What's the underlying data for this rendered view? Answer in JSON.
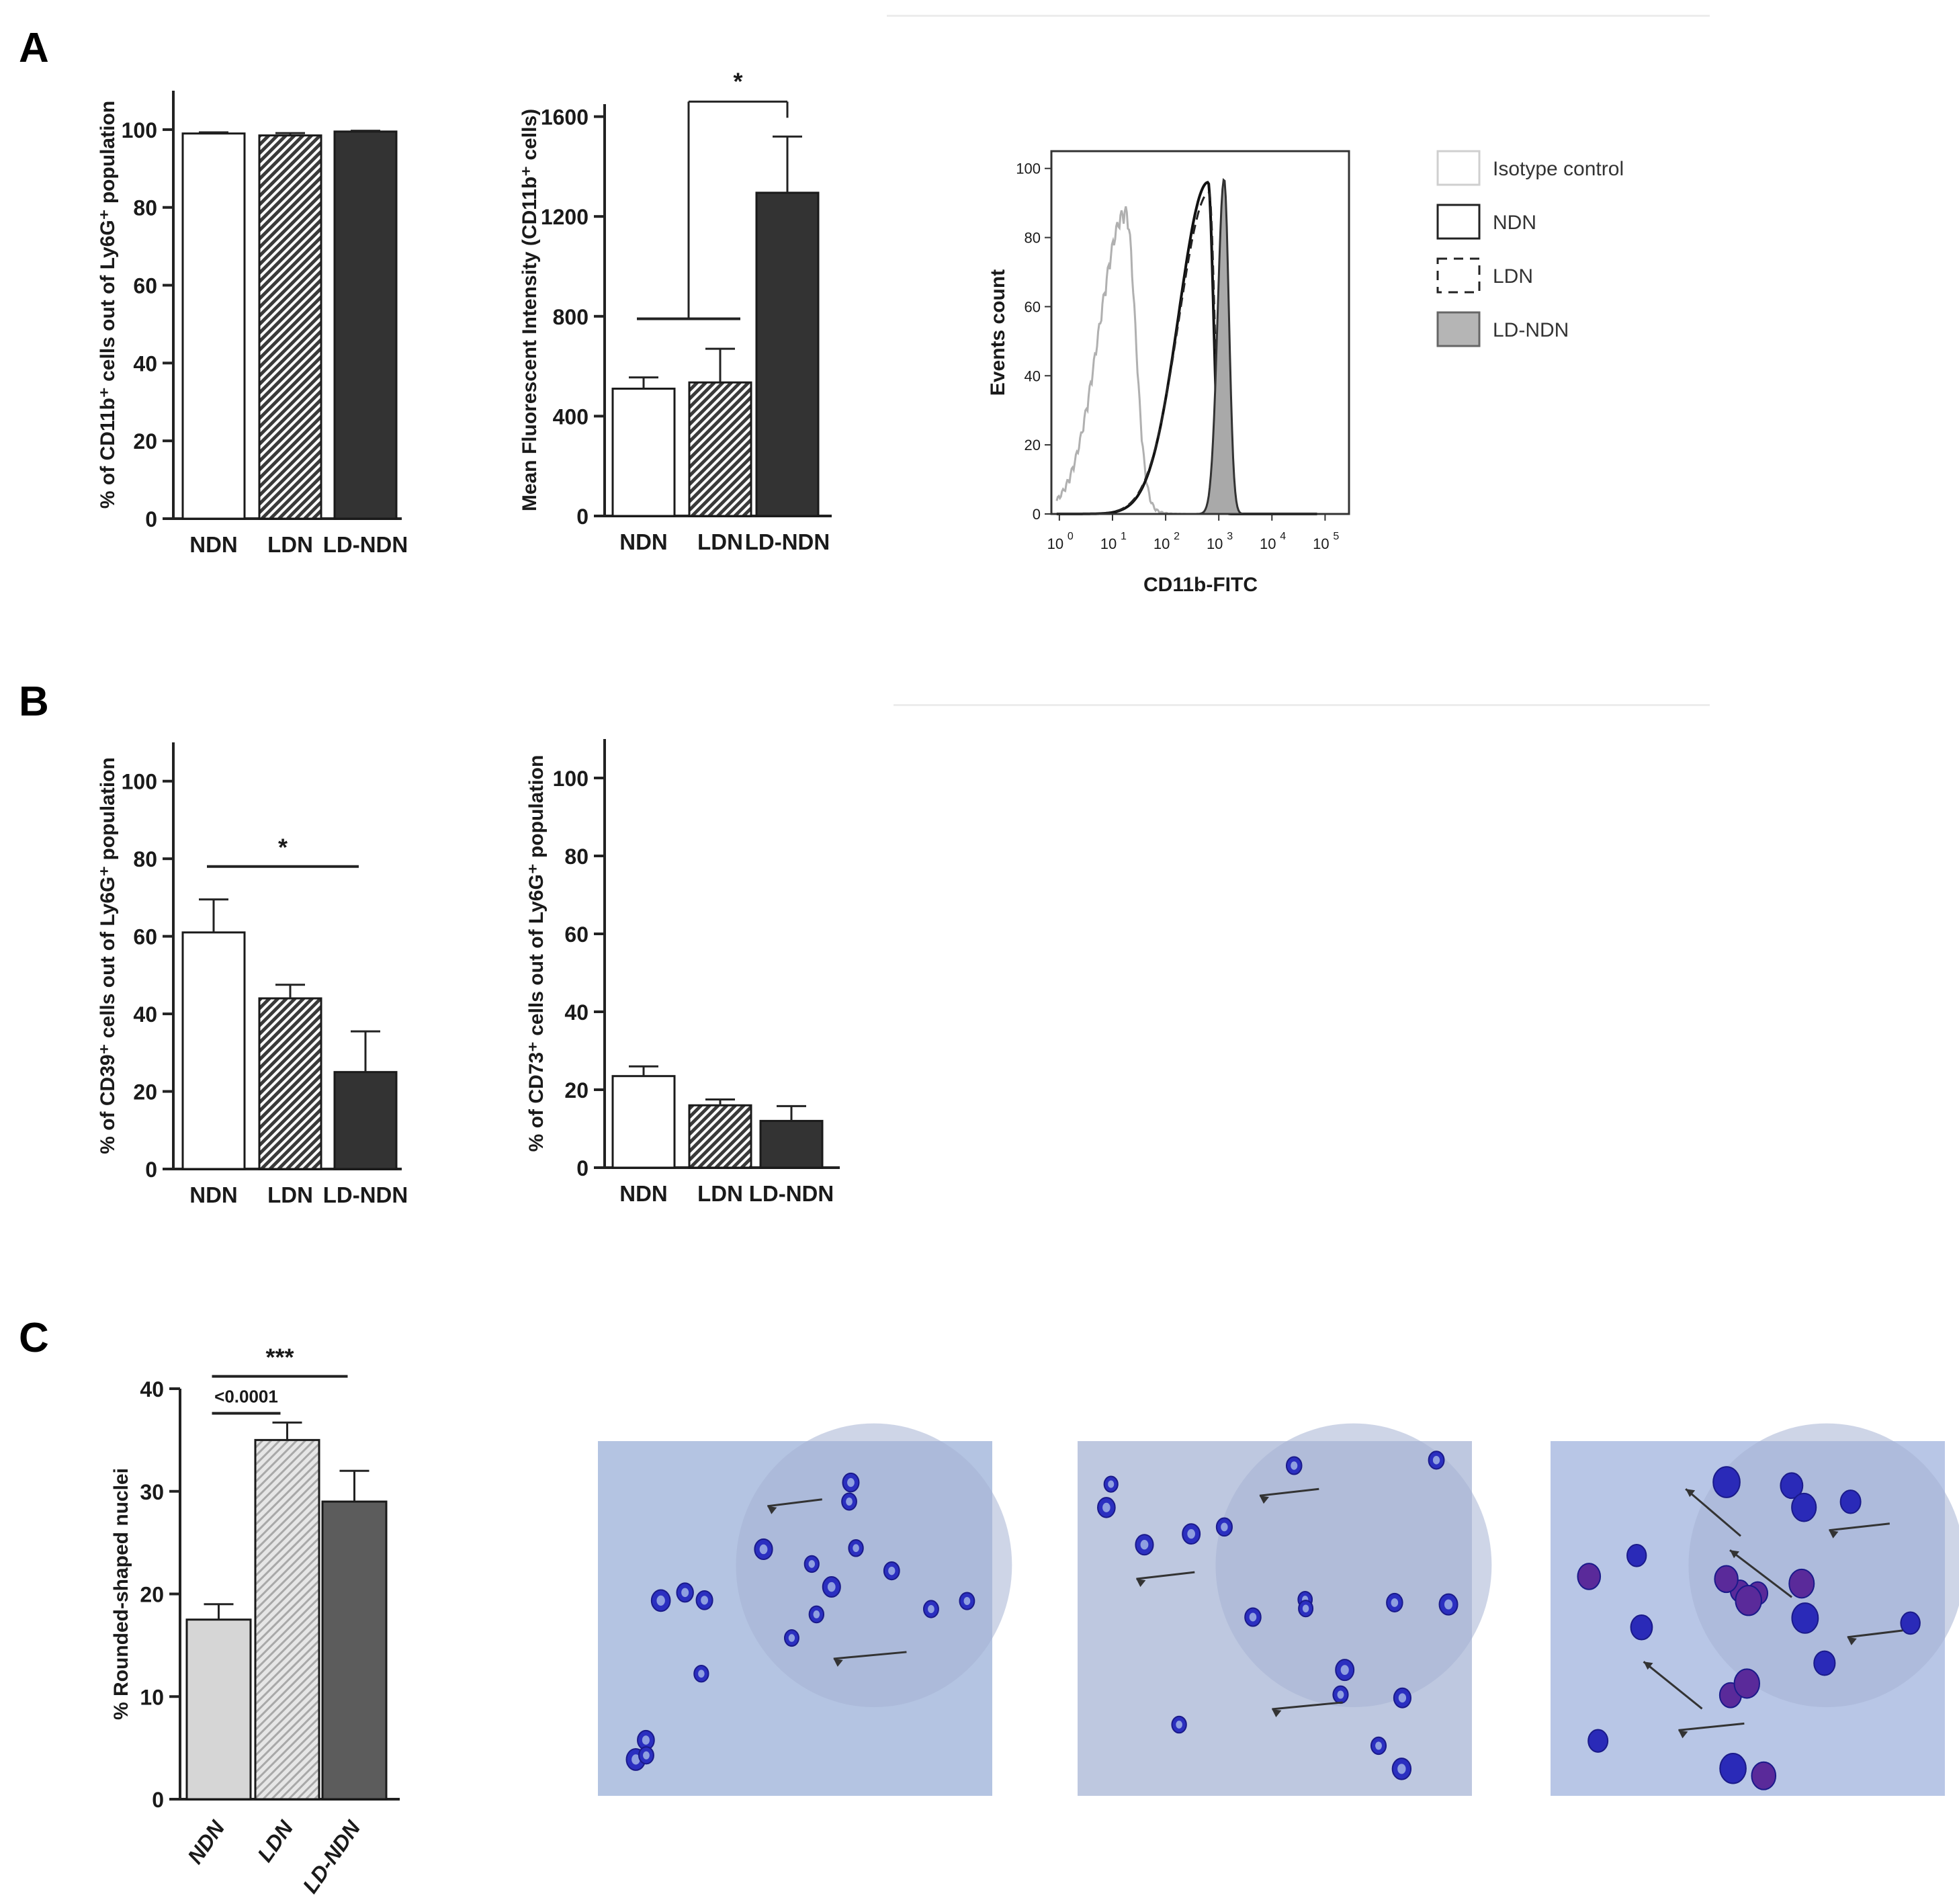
{
  "panels": {
    "a": "A",
    "b": "B",
    "c": "C"
  },
  "chart_data": [
    {
      "id": "A1",
      "type": "bar",
      "ylabel": "% of CD11b⁺ cells out of Ly6G⁺ population",
      "categories": [
        "NDN",
        "LDN",
        "LD-NDN"
      ],
      "values": [
        99,
        98.5,
        99.5
      ],
      "errors": [
        0.3,
        0.6,
        0.2
      ],
      "ylim": [
        0,
        110
      ],
      "yticks": [
        0,
        20,
        40,
        60,
        80,
        100
      ],
      "fills": [
        "white",
        "hatch",
        "#333333"
      ],
      "annotations": []
    },
    {
      "id": "A2",
      "type": "bar",
      "ylabel": "Mean Fluorescent Intensity (CD11b⁺ cells)",
      "categories": [
        "NDN",
        "LDN",
        "LD-NDN"
      ],
      "values": [
        510,
        535,
        1295
      ],
      "errors": [
        45,
        135,
        225
      ],
      "ylim": [
        0,
        1650
      ],
      "yticks": [
        0,
        400,
        800,
        1200,
        1600
      ],
      "fills": [
        "white",
        "hatch",
        "#333333"
      ],
      "annotations": [
        {
          "type": "bracket-group",
          "text": "*"
        }
      ]
    },
    {
      "id": "A3",
      "type": "histogram",
      "xlabel": "CD11b-FITC",
      "ylabel": "Events count",
      "xscale": "log",
      "xticks_exp": [
        0,
        1,
        2,
        3,
        4,
        5
      ],
      "xtick_base": "10",
      "ylim": [
        0,
        100
      ],
      "yticks": [
        0,
        20,
        40,
        60,
        80,
        100
      ],
      "legend_position": "right",
      "series": [
        {
          "name": "Isotype control",
          "style": "grey-line",
          "peak_log": 1.4,
          "peak": 84
        },
        {
          "name": "NDN",
          "style": "black-line",
          "peak_log": 2.95,
          "peak": 96
        },
        {
          "name": "LDN",
          "style": "dashed",
          "peak_log": 2.97,
          "peak": 93
        },
        {
          "name": "LD-NDN",
          "style": "grey-filled",
          "peak_log": 3.25,
          "peak": 97
        }
      ]
    },
    {
      "id": "B1",
      "type": "bar",
      "ylabel": "% of CD39⁺ cells out of Ly6G⁺ population",
      "categories": [
        "NDN",
        "LDN",
        "LD-NDN"
      ],
      "values": [
        61,
        44,
        25
      ],
      "errors": [
        8.5,
        3.5,
        10.5
      ],
      "ylim": [
        0,
        110
      ],
      "yticks": [
        0,
        20,
        40,
        60,
        80,
        100
      ],
      "fills": [
        "white",
        "hatch",
        "#333333"
      ],
      "annotations": [
        {
          "type": "line",
          "from": 0,
          "to": 2,
          "text": "*"
        }
      ]
    },
    {
      "id": "B2",
      "type": "bar",
      "ylabel": "% of CD73⁺ cells out of Ly6G⁺ population",
      "categories": [
        "NDN",
        "LDN",
        "LD-NDN"
      ],
      "values": [
        23.5,
        16,
        12
      ],
      "errors": [
        2.5,
        1.5,
        3.8
      ],
      "ylim": [
        0,
        110
      ],
      "yticks": [
        0,
        20,
        40,
        60,
        80,
        100
      ],
      "fills": [
        "white",
        "hatch",
        "#333333"
      ],
      "annotations": []
    },
    {
      "id": "C1",
      "type": "bar",
      "ylabel": "% Rounded-shaped nuclei",
      "categories": [
        "NDN",
        "LDN",
        "LD-NDN"
      ],
      "values": [
        17.5,
        35,
        29
      ],
      "errors": [
        1.5,
        1.7,
        3
      ],
      "ylim": [
        0,
        40
      ],
      "yticks": [
        0,
        10,
        20,
        30,
        40
      ],
      "fills": [
        "#d6d6d6",
        "hatchlight",
        "#5c5c5c"
      ],
      "rotated_labels": true,
      "annotations": [
        {
          "type": "line",
          "from": 0,
          "to": 1,
          "text": "<0.0001"
        },
        {
          "type": "line",
          "from": 0,
          "to": 2,
          "text": "***"
        }
      ]
    }
  ],
  "micrographs": [
    {
      "id": "m1",
      "bg": "#b4c4e2"
    },
    {
      "id": "m2",
      "bg": "#bec8e0"
    },
    {
      "id": "m3",
      "bg": "#b8c6e6"
    }
  ]
}
